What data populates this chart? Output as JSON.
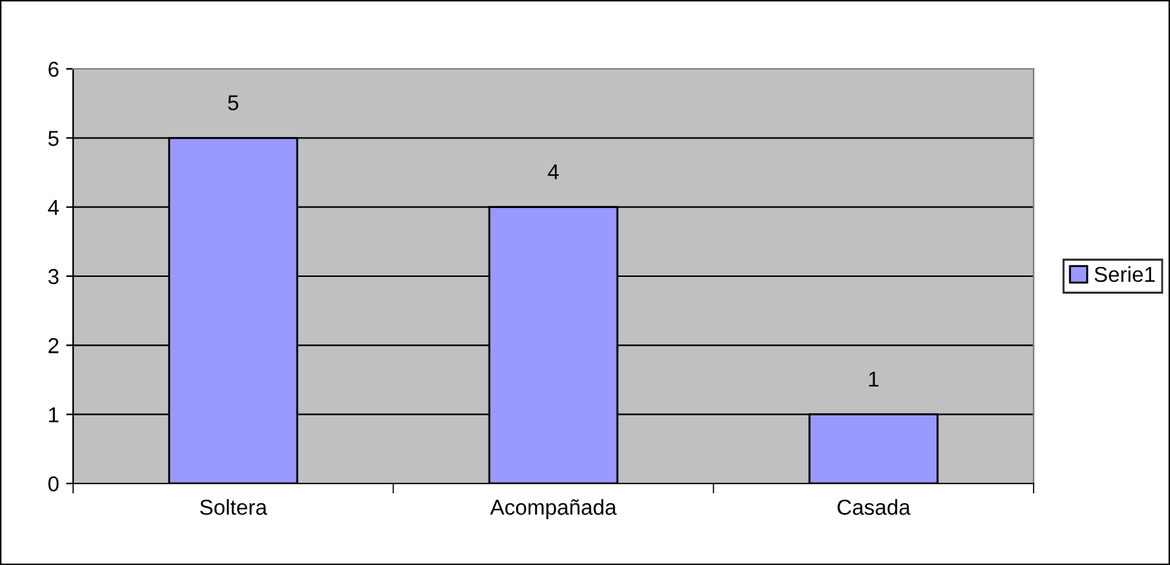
{
  "chart_data": {
    "type": "bar",
    "categories": [
      "Soltera",
      "Acompañada",
      "Casada"
    ],
    "series": [
      {
        "name": "Serie1",
        "color": "#9999ff",
        "values": [
          5,
          4,
          1
        ]
      }
    ],
    "ylim": [
      0,
      6
    ],
    "yticks": [
      0,
      1,
      2,
      3,
      4,
      5,
      6
    ],
    "grid": "y",
    "legend": "right",
    "data_labels": true
  }
}
